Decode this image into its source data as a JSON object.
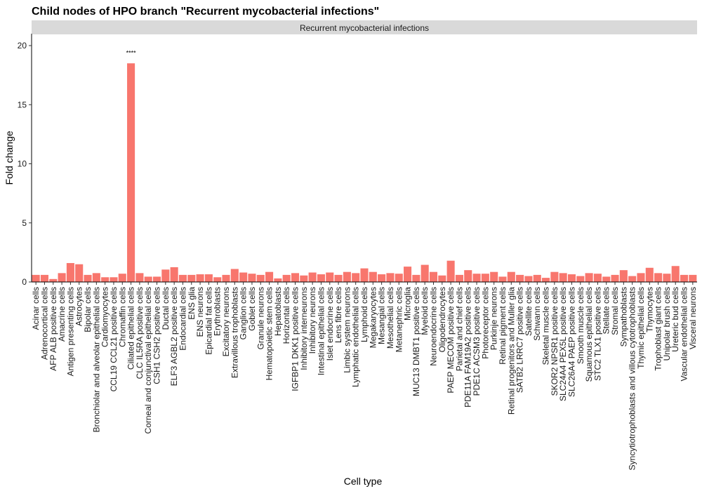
{
  "chart_data": {
    "type": "bar",
    "title": "Child nodes of HPO branch \"Recurrent mycobacterial infections\"",
    "facet_label": "Recurrent mycobacterial infections",
    "xlabel": "Cell type",
    "ylabel": "Fold change",
    "ylim": [
      0,
      21
    ],
    "yticks": [
      0,
      5,
      10,
      15,
      20
    ],
    "grid": false,
    "bar_color": "#F8766D",
    "strip_color": "#D9D9D9",
    "categories": [
      "Acinar cells",
      "Adrenocortical cells",
      "AFP ALB positive cells",
      "Amacrine cells",
      "Antigen presenting cells",
      "Astrocytes",
      "Bipolar cells",
      "Bronchiolar and alveolar epithelial cells",
      "Cardiomyocytes",
      "CCL19 CCL21 positive cells",
      "Chromaffin cells",
      "Ciliated epithelial cells",
      "CLC IL5RA positive cells",
      "Corneal and conjunctival epithelial cells",
      "CSH1 CSH2 positive cells",
      "Ductal cells",
      "ELF3 AGBL2 positive cells",
      "Endocardial cells",
      "ENS glia",
      "ENS neurons",
      "Epicardial fat cells",
      "Erythroblasts",
      "Excitatory neurons",
      "Extravillous trophoblasts",
      "Ganglion cells",
      "Goblet cells",
      "Granule neurons",
      "Hematopoietic stem cells",
      "Hepatoblasts",
      "Horizontal cells",
      "IGFBP1 DKK1 positive cells",
      "Inhibitory interneurons",
      "Inhibitory neurons",
      "Intestinal epithelial cells",
      "Islet endocrine cells",
      "Lens fibre cells",
      "Limbic system neurons",
      "Lymphatic endothelial cells",
      "Lymphoid cells",
      "Megakaryocytes",
      "Mesangial cells",
      "Mesothelial cells",
      "Metanephric cells",
      "Microglia",
      "MUC13 DMBT1 positive cells",
      "Myeloid cells",
      "Neuroendocrine cells",
      "Oligodendrocytes",
      "PAEP MECOM positive cells",
      "Parietal and chief cells",
      "PDE11A FAM19A2 positive cells",
      "PDE1C ACSM3 positive cells",
      "Photoreceptor cells",
      "Purkinje neurons",
      "Retinal pigment cells",
      "Retinal progenitors and Muller glia",
      "SATB2 LRRC7 positive cells",
      "Satellite cells",
      "Schwann cells",
      "Skeletal muscle cells",
      "SKOR2 NPSR1 positive cells",
      "SLC24A4 PEX5L positive cells",
      "SLC26A4 PAEP positive cells",
      "Smooth muscle cells",
      "Squamous epithelial cells",
      "STC2 TLX1 positive cells",
      "Stellate cells",
      "Stromal cells",
      "Sympathoblasts",
      "Syncytiotrophoblasts and villous cytotrophoblasts",
      "Thymic epithelial cells",
      "Thymocytes",
      "Trophoblast giant cells",
      "Unipolar brush cells",
      "Ureteric bud cells",
      "Vascular endothelial cells",
      "Visceral neurons"
    ],
    "values": [
      0.6,
      0.6,
      0.25,
      0.75,
      1.6,
      1.5,
      0.6,
      0.75,
      0.4,
      0.4,
      0.7,
      18.5,
      0.75,
      0.45,
      0.45,
      1.05,
      1.25,
      0.6,
      0.6,
      0.65,
      0.65,
      0.4,
      0.6,
      1.1,
      0.8,
      0.7,
      0.6,
      0.85,
      0.3,
      0.6,
      0.75,
      0.55,
      0.8,
      0.65,
      0.8,
      0.6,
      0.85,
      0.75,
      1.15,
      0.85,
      0.65,
      0.75,
      0.7,
      1.3,
      0.6,
      1.45,
      0.85,
      0.55,
      1.8,
      0.6,
      1.0,
      0.7,
      0.7,
      0.85,
      0.45,
      0.85,
      0.6,
      0.5,
      0.6,
      0.35,
      0.85,
      0.75,
      0.65,
      0.5,
      0.75,
      0.7,
      0.45,
      0.6,
      1.0,
      0.5,
      0.75,
      1.2,
      0.75,
      0.7,
      1.35,
      0.6,
      0.6
    ],
    "annotations": [
      {
        "category": "Ciliated epithelial cells",
        "text": "****"
      }
    ]
  }
}
